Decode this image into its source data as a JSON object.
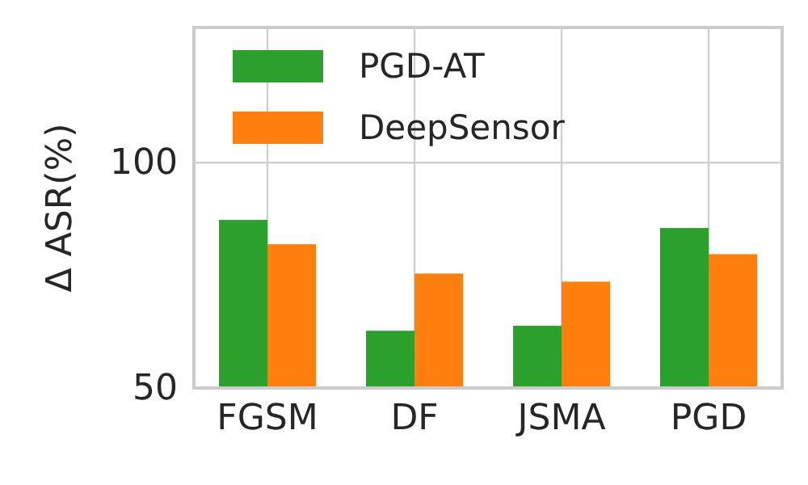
{
  "chart_data": {
    "type": "bar",
    "ylabel": "Δ ASR(%)",
    "categories": [
      "FGSM",
      "DF",
      "JSMA",
      "PGD"
    ],
    "series": [
      {
        "name": "PGD-AT",
        "color": "#2ca02c",
        "values": [
          87.3,
          62.7,
          63.8,
          85.5
        ]
      },
      {
        "name": "DeepSensor",
        "color": "#ff7f0e",
        "values": [
          81.9,
          75.4,
          73.6,
          79.7
        ]
      }
    ],
    "ylim": [
      50,
      130
    ],
    "yticks": [
      50,
      100
    ],
    "grid": true,
    "legend": "top left"
  }
}
